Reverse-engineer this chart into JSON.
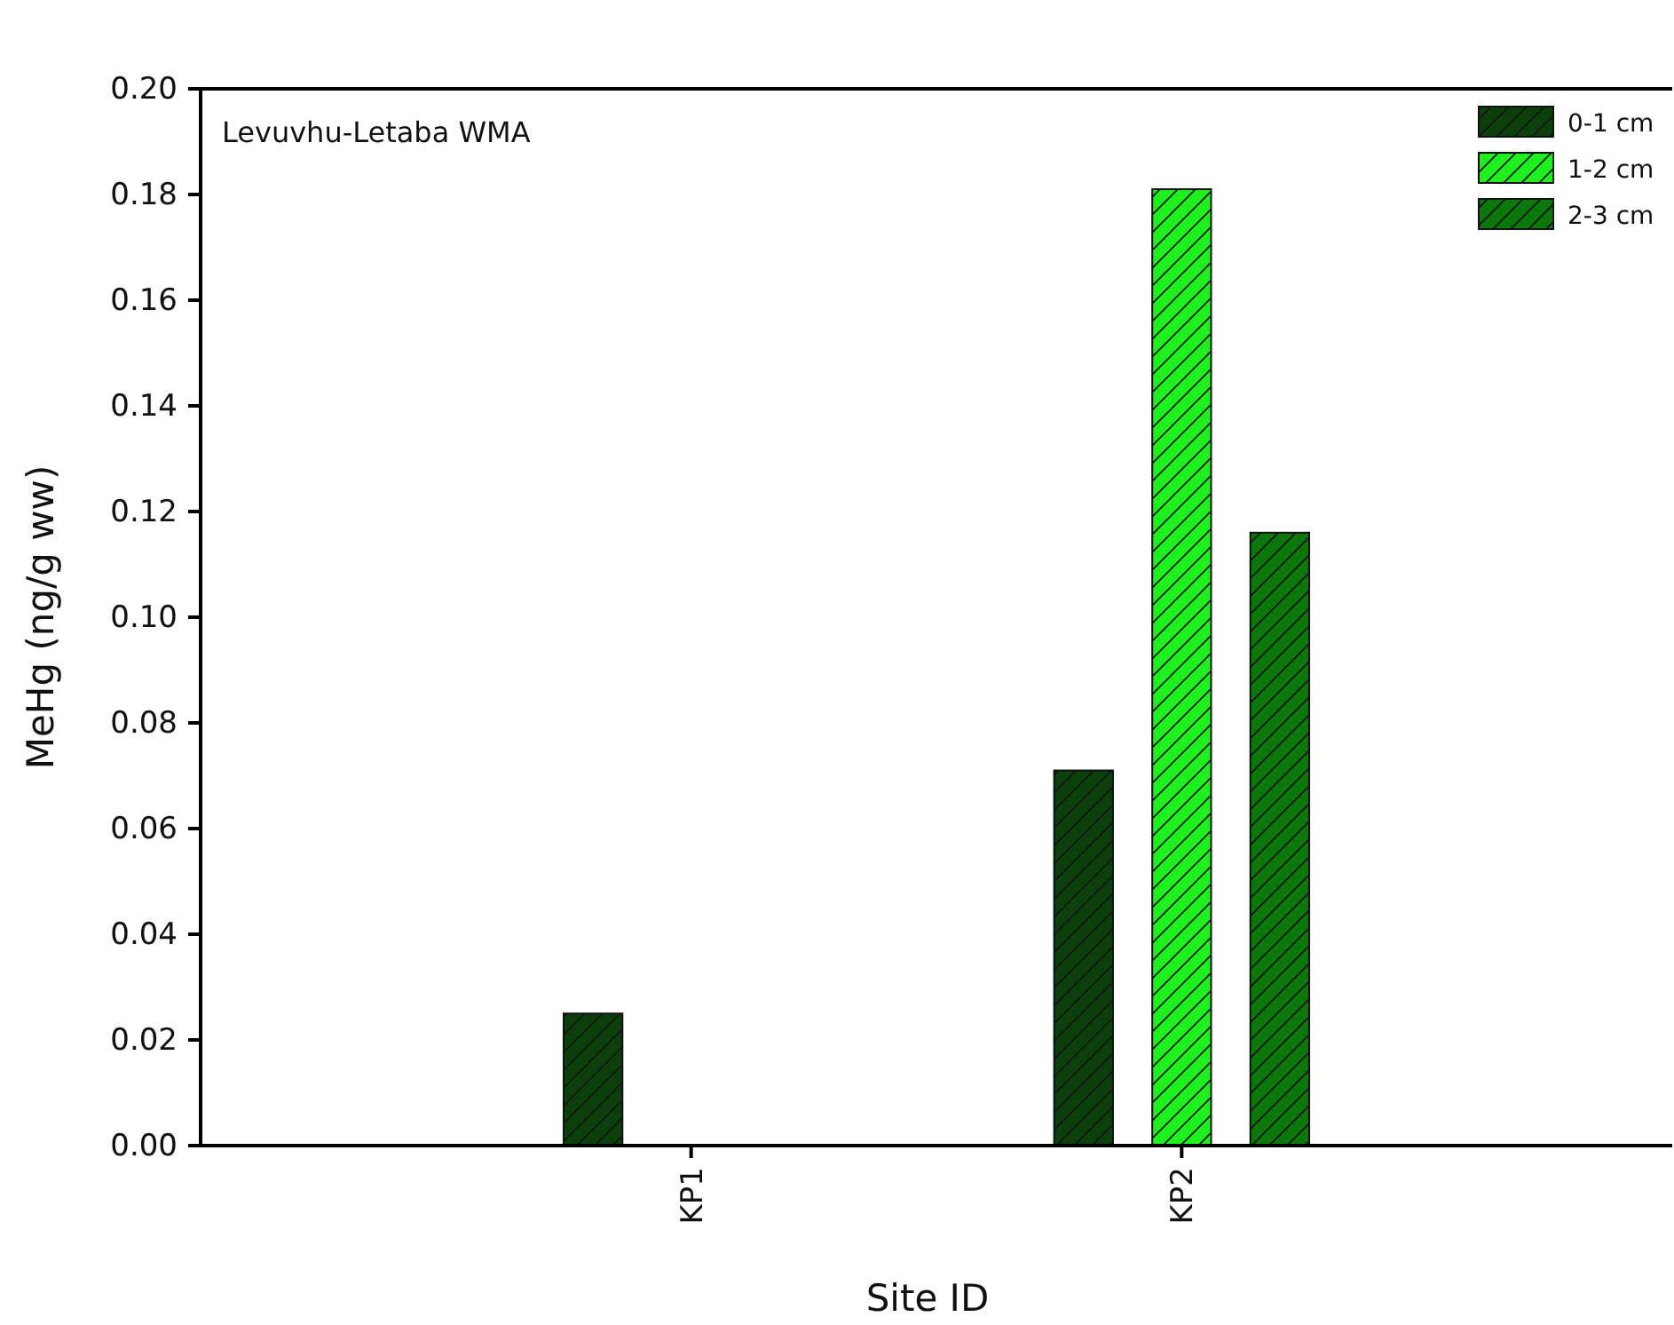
{
  "chart_data": {
    "type": "bar",
    "xlabel": "Site ID",
    "ylabel": "MeHg (ng/g ww)",
    "categories": [
      "KP1",
      "KP2"
    ],
    "series": [
      {
        "name": "0-1 cm",
        "color": "#0b3f0b",
        "values": [
          0.025,
          0.071
        ]
      },
      {
        "name": "1-2 cm",
        "color": "#1ef01e",
        "values": [
          null,
          0.181
        ]
      },
      {
        "name": "2-3 cm",
        "color": "#0c780c",
        "values": [
          null,
          0.116
        ]
      }
    ],
    "ylim": [
      0,
      0.2
    ],
    "yticks": [
      {
        "value": 0,
        "label": "0.00"
      },
      0.02,
      0.04,
      0.06,
      0.08,
      {
        "value": 0.1,
        "label": "0.10"
      },
      0.12,
      0.14,
      0.16,
      0.18,
      {
        "value": 0.2,
        "label": "0.20"
      }
    ],
    "annotations": [
      "Levuvhu-Letaba WMA"
    ],
    "legend": "top right",
    "grid": false
  }
}
